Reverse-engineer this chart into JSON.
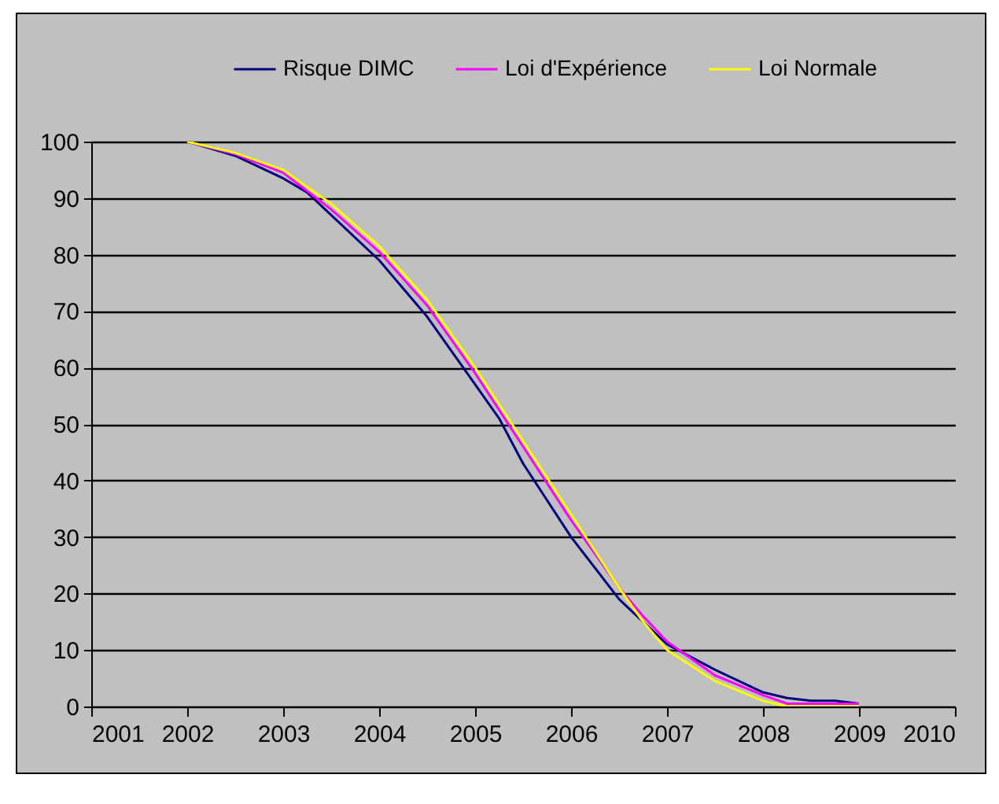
{
  "chart_data": {
    "type": "line",
    "legend": "top",
    "grid": "y",
    "xlim": [
      2001,
      2010
    ],
    "xticks": [
      2001,
      2002,
      2003,
      2004,
      2005,
      2006,
      2007,
      2008,
      2009,
      2010
    ],
    "ylim": [
      0,
      100
    ],
    "yticks": [
      0,
      10,
      20,
      30,
      40,
      50,
      60,
      70,
      80,
      90,
      100
    ],
    "series": [
      {
        "name": "Risque DIMC",
        "color": "#000080",
        "x": [
          2002,
          2002.5,
          2003,
          2003.25,
          2003.5,
          2004,
          2004.5,
          2005,
          2005.25,
          2005.5,
          2006,
          2006.5,
          2006.75,
          2007,
          2007.5,
          2008,
          2008.25,
          2008.5,
          2008.75,
          2009
        ],
        "values": [
          100,
          97.5,
          93.5,
          91,
          87,
          79,
          69,
          57,
          51,
          43,
          30,
          19,
          15,
          11,
          6.5,
          2.5,
          1.5,
          1,
          1,
          0.5
        ]
      },
      {
        "name": "Loi d'Expérience",
        "color": "#ff00ff",
        "x": [
          2002,
          2002.5,
          2003,
          2003.5,
          2004,
          2004.5,
          2005,
          2005.5,
          2006,
          2006.5,
          2006.75,
          2007,
          2007.5,
          2008,
          2008.25,
          2009
        ],
        "values": [
          100,
          97.8,
          94.5,
          88,
          80.5,
          71,
          59,
          46,
          33,
          21,
          16,
          11.5,
          5.5,
          2,
          0.5,
          0.5
        ]
      },
      {
        "name": "Loi Normale",
        "color": "#ffff00",
        "x": [
          2002,
          2002.5,
          2003,
          2003.5,
          2004,
          2004.5,
          2005,
          2005.5,
          2006,
          2006.5,
          2006.75,
          2007,
          2007.5,
          2008,
          2008.25,
          2009
        ],
        "values": [
          100,
          98,
          95,
          89,
          81.5,
          72,
          60,
          47,
          34,
          21,
          15,
          10,
          4.5,
          1,
          0,
          0
        ]
      }
    ]
  }
}
